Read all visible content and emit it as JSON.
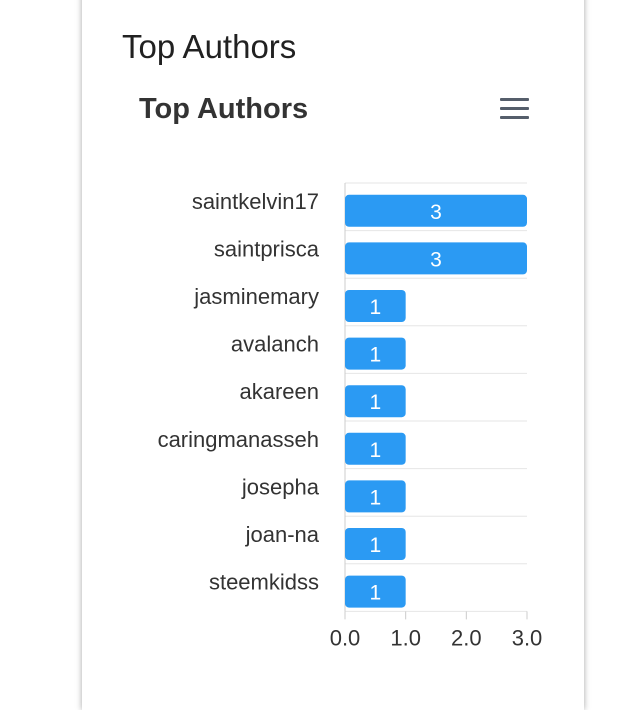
{
  "card": {
    "title": "Top Authors"
  },
  "menu": {
    "icon": "hamburger-menu-icon"
  },
  "chart_data": {
    "type": "bar",
    "orientation": "horizontal",
    "title": "Top Authors",
    "categories": [
      "saintkelvin17",
      "saintprisca",
      "jasminemary",
      "avalanch",
      "akareen",
      "caringmanasseh",
      "josepha",
      "joan-na",
      "steemkidss"
    ],
    "values": [
      3,
      3,
      1,
      1,
      1,
      1,
      1,
      1,
      1
    ],
    "data_labels": [
      "3",
      "3",
      "1",
      "1",
      "1",
      "1",
      "1",
      "1",
      "1"
    ],
    "xlim": [
      0,
      3
    ],
    "xticks": [
      "0.0",
      "1.0",
      "2.0",
      "3.0"
    ],
    "grid": true,
    "bar_color": "#2b9af3"
  }
}
